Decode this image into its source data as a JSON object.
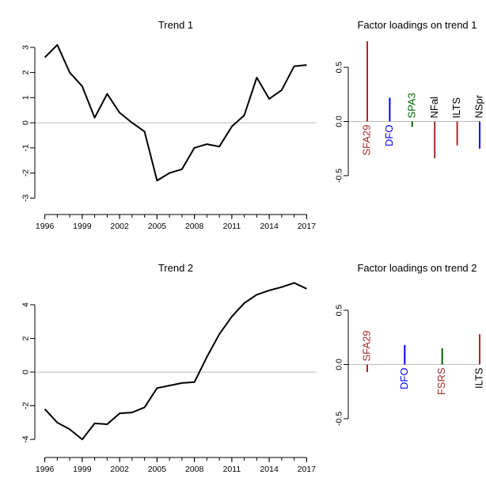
{
  "chart_data": [
    {
      "type": "line",
      "title": "Trend 1",
      "xlabel": "",
      "ylabel": "",
      "x": [
        1996,
        1997,
        1998,
        1999,
        2000,
        2001,
        2002,
        2003,
        2004,
        2005,
        2006,
        2007,
        2008,
        2009,
        2010,
        2011,
        2012,
        2013,
        2014,
        2015,
        2016,
        2017
      ],
      "values": [
        2.6,
        3.1,
        2.0,
        1.45,
        0.2,
        1.15,
        0.4,
        0.0,
        -0.35,
        -2.3,
        -2.0,
        -1.85,
        -1.0,
        -0.85,
        -0.95,
        -0.15,
        0.3,
        1.8,
        0.95,
        1.3,
        2.25,
        2.3
      ],
      "xticks": [
        "1996",
        "1999",
        "2002",
        "2005",
        "2008",
        "2011",
        "2014",
        "2017"
      ],
      "yticks": [
        "-3",
        "-2",
        "-1",
        "0",
        "1",
        "2",
        "3"
      ],
      "xlim": [
        1995.2,
        2017.8
      ],
      "ylim": [
        -3.4,
        3.5
      ],
      "reference_line": 0,
      "line_color": "#000000"
    },
    {
      "type": "bar",
      "title": "Factor loadings on trend 1",
      "categories": [
        "SFA29",
        "DFO",
        "SPA3",
        "NFal",
        "ILTS",
        "NSpr"
      ],
      "values": [
        0.74,
        0.22,
        -0.05,
        -0.34,
        -0.22,
        -0.25
      ],
      "colors": [
        "#a52a2a",
        "#0000ff",
        "#006400",
        "#a52a2a",
        "#a52a2a",
        "#0000ff"
      ],
      "label_colors": [
        "#a52a2a",
        "#0000ff",
        "#006400",
        "#000000",
        "#000000",
        "#000000"
      ],
      "yticks": [
        "-0.5",
        "0.0",
        "0.5"
      ],
      "ylim": [
        -0.8,
        0.8
      ],
      "reference_line": 0
    },
    {
      "type": "line",
      "title": "Trend 2",
      "xlabel": "",
      "ylabel": "",
      "x": [
        1996,
        1997,
        1998,
        1999,
        2000,
        2001,
        2002,
        2003,
        2004,
        2005,
        2006,
        2007,
        2008,
        2009,
        2010,
        2011,
        2012,
        2013,
        2014,
        2015,
        2016,
        2017
      ],
      "values": [
        -2.2,
        -3.0,
        -3.4,
        -4.0,
        -3.05,
        -3.1,
        -2.45,
        -2.4,
        -2.1,
        -0.95,
        -0.8,
        -0.65,
        -0.6,
        0.9,
        2.25,
        3.3,
        4.1,
        4.6,
        4.85,
        5.05,
        5.3,
        4.95
      ],
      "xticks": [
        "1996",
        "1999",
        "2002",
        "2005",
        "2008",
        "2011",
        "2014",
        "2017"
      ],
      "yticks": [
        "-4",
        "-2",
        "0",
        "2",
        "4"
      ],
      "xlim": [
        1995.2,
        2017.8
      ],
      "ylim": [
        -4.7,
        5.6
      ],
      "reference_line": 0,
      "line_color": "#000000"
    },
    {
      "type": "bar",
      "title": "Factor loadings on trend 2",
      "categories": [
        "SFA29",
        "DFO",
        "FSRS",
        "ILTS"
      ],
      "values": [
        -0.07,
        0.18,
        0.15,
        0.28
      ],
      "colors": [
        "#a52a2a",
        "#0000ff",
        "#006400",
        "#a52a2a"
      ],
      "label_colors": [
        "#a52a2a",
        "#0000ff",
        "#a52a2a",
        "#000000"
      ],
      "yticks": [
        "-0.5",
        "0.0",
        "0.5"
      ],
      "ylim": [
        -0.8,
        0.8
      ],
      "reference_line": 0
    }
  ]
}
